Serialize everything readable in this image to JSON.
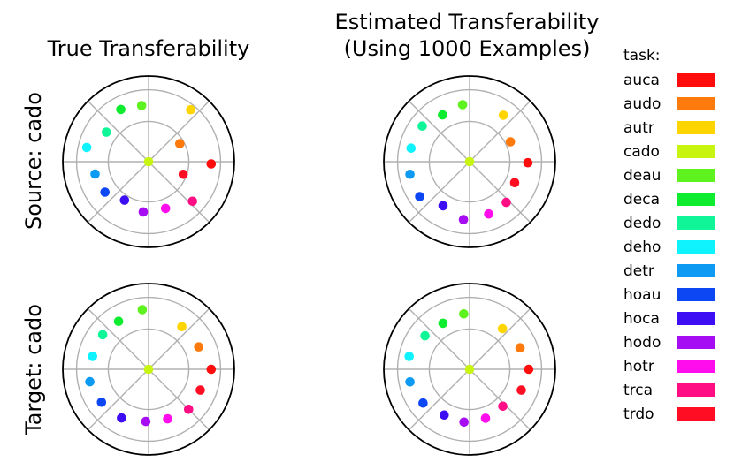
{
  "figure": {
    "col_titles": [
      "True Transferability",
      "Estimated Transferability",
      "(Using 1000 Examples)"
    ],
    "row_labels": [
      "Source: cado",
      "Target: cado"
    ],
    "legend_title": "task:"
  },
  "tasks": [
    {
      "name": "auca",
      "color": "#ff0d0d"
    },
    {
      "name": "audo",
      "color": "#ff7a0d"
    },
    {
      "name": "autr",
      "color": "#ffd500"
    },
    {
      "name": "cado",
      "color": "#c8f50f"
    },
    {
      "name": "deau",
      "color": "#5ef21e"
    },
    {
      "name": "deca",
      "color": "#0dec2f"
    },
    {
      "name": "dedo",
      "color": "#0ff597"
    },
    {
      "name": "deho",
      "color": "#0ff3ff"
    },
    {
      "name": "detr",
      "color": "#0d9af3"
    },
    {
      "name": "hoau",
      "color": "#0d46f3"
    },
    {
      "name": "hoca",
      "color": "#3d0df3"
    },
    {
      "name": "hodo",
      "color": "#a60df3"
    },
    {
      "name": "hotr",
      "color": "#ff0ded"
    },
    {
      "name": "trca",
      "color": "#ff0d85"
    },
    {
      "name": "trdo",
      "color": "#ff0d22"
    }
  ],
  "chart_data": [
    {
      "type": "scatter",
      "subtype": "polar",
      "title": "True Transferability",
      "row_label": "Source: cado",
      "radial_range": [
        0,
        1
      ],
      "grid": true,
      "points": [
        {
          "task": "auca",
          "angle_deg": -2,
          "r": 0.73
        },
        {
          "task": "audo",
          "angle_deg": 30,
          "r": 0.42
        },
        {
          "task": "autr",
          "angle_deg": 51,
          "r": 0.78
        },
        {
          "task": "cado",
          "angle_deg": 0,
          "r": 0.0
        },
        {
          "task": "deau",
          "angle_deg": 97,
          "r": 0.66
        },
        {
          "task": "deca",
          "angle_deg": 118,
          "r": 0.69
        },
        {
          "task": "dedo",
          "angle_deg": 145,
          "r": 0.6
        },
        {
          "task": "deho",
          "angle_deg": 167,
          "r": 0.74
        },
        {
          "task": "detr",
          "angle_deg": 193,
          "r": 0.64
        },
        {
          "task": "hoau",
          "angle_deg": 215,
          "r": 0.62
        },
        {
          "task": "hoca",
          "angle_deg": 238,
          "r": 0.53
        },
        {
          "task": "hodo",
          "angle_deg": 264,
          "r": 0.59
        },
        {
          "task": "hotr",
          "angle_deg": 290,
          "r": 0.58
        },
        {
          "task": "trca",
          "angle_deg": 318,
          "r": 0.69
        },
        {
          "task": "trdo",
          "angle_deg": 340,
          "r": 0.43
        }
      ]
    },
    {
      "type": "scatter",
      "subtype": "polar",
      "title": "Estimated Transferability (Using 1000 Examples)",
      "row_label": "Source: cado",
      "radial_range": [
        0,
        1
      ],
      "grid": true,
      "points": [
        {
          "task": "auca",
          "angle_deg": -1,
          "r": 0.68
        },
        {
          "task": "audo",
          "angle_deg": 26,
          "r": 0.53
        },
        {
          "task": "autr",
          "angle_deg": 54,
          "r": 0.67
        },
        {
          "task": "cado",
          "angle_deg": 0,
          "r": 0.0
        },
        {
          "task": "deau",
          "angle_deg": 97,
          "r": 0.67
        },
        {
          "task": "deca",
          "angle_deg": 120,
          "r": 0.63
        },
        {
          "task": "dedo",
          "angle_deg": 143,
          "r": 0.69
        },
        {
          "task": "deho",
          "angle_deg": 167,
          "r": 0.7
        },
        {
          "task": "detr",
          "angle_deg": 192,
          "r": 0.71
        },
        {
          "task": "hoau",
          "angle_deg": 215,
          "r": 0.71
        },
        {
          "task": "hoca",
          "angle_deg": 239,
          "r": 0.6
        },
        {
          "task": "hodo",
          "angle_deg": 264,
          "r": 0.68
        },
        {
          "task": "hotr",
          "angle_deg": 290,
          "r": 0.65
        },
        {
          "task": "trca",
          "angle_deg": 312,
          "r": 0.64
        },
        {
          "task": "trdo",
          "angle_deg": 335,
          "r": 0.58
        }
      ]
    },
    {
      "type": "scatter",
      "subtype": "polar",
      "title": "True Transferability",
      "row_label": "Target: cado",
      "radial_range": [
        0,
        1
      ],
      "grid": true,
      "points": [
        {
          "task": "auca",
          "angle_deg": 0,
          "r": 0.73
        },
        {
          "task": "audo",
          "angle_deg": 24,
          "r": 0.64
        },
        {
          "task": "autr",
          "angle_deg": 52,
          "r": 0.63
        },
        {
          "task": "cado",
          "angle_deg": 0,
          "r": 0.0
        },
        {
          "task": "deau",
          "angle_deg": 96,
          "r": 0.7
        },
        {
          "task": "deca",
          "angle_deg": 122,
          "r": 0.66
        },
        {
          "task": "dedo",
          "angle_deg": 143,
          "r": 0.67
        },
        {
          "task": "deho",
          "angle_deg": 167,
          "r": 0.67
        },
        {
          "task": "detr",
          "angle_deg": 192,
          "r": 0.7
        },
        {
          "task": "hoau",
          "angle_deg": 215,
          "r": 0.67
        },
        {
          "task": "hoca",
          "angle_deg": 241,
          "r": 0.65
        },
        {
          "task": "hodo",
          "angle_deg": 267,
          "r": 0.61
        },
        {
          "task": "hotr",
          "angle_deg": 291,
          "r": 0.62
        },
        {
          "task": "trca",
          "angle_deg": 315,
          "r": 0.66
        },
        {
          "task": "trdo",
          "angle_deg": 338,
          "r": 0.65
        }
      ]
    },
    {
      "type": "scatter",
      "subtype": "polar",
      "title": "Estimated Transferability (Using 1000 Examples)",
      "row_label": "Target: cado",
      "radial_range": [
        0,
        1
      ],
      "grid": true,
      "points": [
        {
          "task": "auca",
          "angle_deg": 0,
          "r": 0.69
        },
        {
          "task": "audo",
          "angle_deg": 23,
          "r": 0.64
        },
        {
          "task": "autr",
          "angle_deg": 51,
          "r": 0.61
        },
        {
          "task": "cado",
          "angle_deg": 0,
          "r": 0.0
        },
        {
          "task": "deau",
          "angle_deg": 96,
          "r": 0.65
        },
        {
          "task": "deca",
          "angle_deg": 120,
          "r": 0.62
        },
        {
          "task": "dedo",
          "angle_deg": 143,
          "r": 0.65
        },
        {
          "task": "deho",
          "angle_deg": 168,
          "r": 0.72
        },
        {
          "task": "detr",
          "angle_deg": 192,
          "r": 0.71
        },
        {
          "task": "hoau",
          "angle_deg": 216,
          "r": 0.67
        },
        {
          "task": "hoca",
          "angle_deg": 241,
          "r": 0.61
        },
        {
          "task": "hodo",
          "angle_deg": 264,
          "r": 0.62
        },
        {
          "task": "hotr",
          "angle_deg": 288,
          "r": 0.6
        },
        {
          "task": "trca",
          "angle_deg": 312,
          "r": 0.58
        },
        {
          "task": "trdo",
          "angle_deg": 338,
          "r": 0.65
        }
      ]
    }
  ]
}
